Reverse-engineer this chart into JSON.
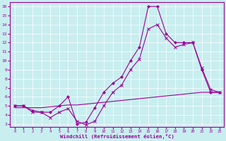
{
  "xlabel": "Windchill (Refroidissement éolien,°C)",
  "bg_color": "#c8eef0",
  "line_color": "#990099",
  "grid_color": "#aadddd",
  "xlim": [
    -0.5,
    23.5
  ],
  "ylim": [
    2.7,
    16.5
  ],
  "xticks": [
    0,
    1,
    2,
    3,
    4,
    5,
    6,
    7,
    8,
    9,
    10,
    11,
    12,
    13,
    14,
    15,
    16,
    17,
    18,
    19,
    20,
    21,
    22,
    23
  ],
  "yticks": [
    3,
    4,
    5,
    6,
    7,
    8,
    9,
    10,
    11,
    12,
    13,
    14,
    15,
    16
  ],
  "line1_x": [
    0,
    1,
    2,
    3,
    4,
    5,
    6,
    7,
    8,
    9,
    10,
    11,
    12,
    13,
    14,
    15,
    16,
    17,
    18,
    19,
    20,
    21,
    22,
    23
  ],
  "line1_y": [
    5.0,
    5.0,
    4.5,
    4.3,
    4.3,
    5.0,
    6.0,
    3.0,
    3.2,
    4.8,
    6.5,
    7.5,
    8.2,
    10.0,
    11.5,
    16.0,
    16.0,
    13.0,
    12.0,
    12.0,
    12.0,
    9.0,
    6.5,
    6.5
  ],
  "line2_x": [
    0,
    1,
    2,
    3,
    4,
    5,
    6,
    7,
    8,
    9,
    10,
    11,
    12,
    13,
    14,
    15,
    16,
    17,
    18,
    19,
    20,
    21,
    22,
    23
  ],
  "line2_y": [
    5.0,
    5.0,
    4.3,
    4.3,
    3.7,
    4.3,
    4.7,
    3.3,
    2.9,
    3.3,
    5.0,
    6.5,
    7.3,
    9.0,
    10.2,
    13.5,
    14.0,
    12.5,
    11.5,
    11.8,
    12.0,
    9.2,
    6.8,
    6.5
  ],
  "line3_x": [
    0,
    1,
    2,
    3,
    4,
    5,
    6,
    7,
    8,
    9,
    10,
    11,
    12,
    13,
    14,
    15,
    16,
    17,
    18,
    19,
    20,
    21,
    22,
    23
  ],
  "line3_y": [
    4.8,
    4.8,
    4.8,
    4.8,
    4.9,
    5.0,
    5.1,
    5.1,
    5.2,
    5.3,
    5.4,
    5.5,
    5.6,
    5.7,
    5.8,
    5.9,
    6.0,
    6.1,
    6.2,
    6.3,
    6.4,
    6.5,
    6.5,
    6.5
  ]
}
